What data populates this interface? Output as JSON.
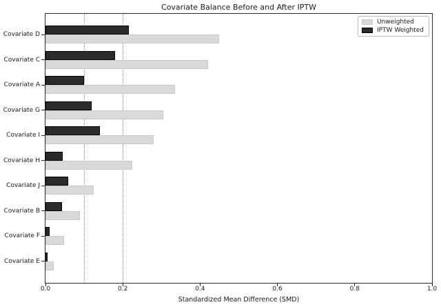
{
  "figure": {
    "title": "Covariate Balance Before and After IPTW",
    "xlabel": "Standardized Mean Difference (SMD)"
  },
  "legend": {
    "position": "upper right",
    "items": [
      {
        "label": "Unweighted",
        "color": "#d9d9d9",
        "border": "#c9c9c9"
      },
      {
        "label": "IPTW Weighted",
        "color": "#2b2b2b",
        "border": "#000000"
      }
    ]
  },
  "chart_data": {
    "type": "bar",
    "orientation": "horizontal",
    "title": "Covariate Balance Before and After IPTW",
    "xlabel": "Standardized Mean Difference (SMD)",
    "ylabel": "",
    "categories": [
      "Covariate D",
      "Covariate C",
      "Covariate A",
      "Covariate G",
      "Covariate I",
      "Covariate H",
      "Covariate J",
      "Covariate B",
      "Covariate F",
      "Covariate E"
    ],
    "series": [
      {
        "name": "Unweighted",
        "color": "#d9d9d9",
        "values": [
          0.45,
          0.42,
          0.335,
          0.305,
          0.28,
          0.225,
          0.125,
          0.09,
          0.048,
          0.022
        ]
      },
      {
        "name": "IPTW Weighted",
        "color": "#2b2b2b",
        "values": [
          0.215,
          0.18,
          0.1,
          0.12,
          0.14,
          0.044,
          0.058,
          0.042,
          0.01,
          0.005
        ]
      }
    ],
    "xlim": [
      0.0,
      1.0
    ],
    "xticks": [
      0.0,
      0.2,
      0.4,
      0.6,
      0.8,
      1.0
    ],
    "xtick_labels": [
      "0.0",
      "0.2",
      "0.4",
      "0.6",
      "0.8",
      "1.0"
    ],
    "reference_lines": [
      0.1,
      0.2
    ],
    "grid": false,
    "legend_position": "upper right"
  }
}
